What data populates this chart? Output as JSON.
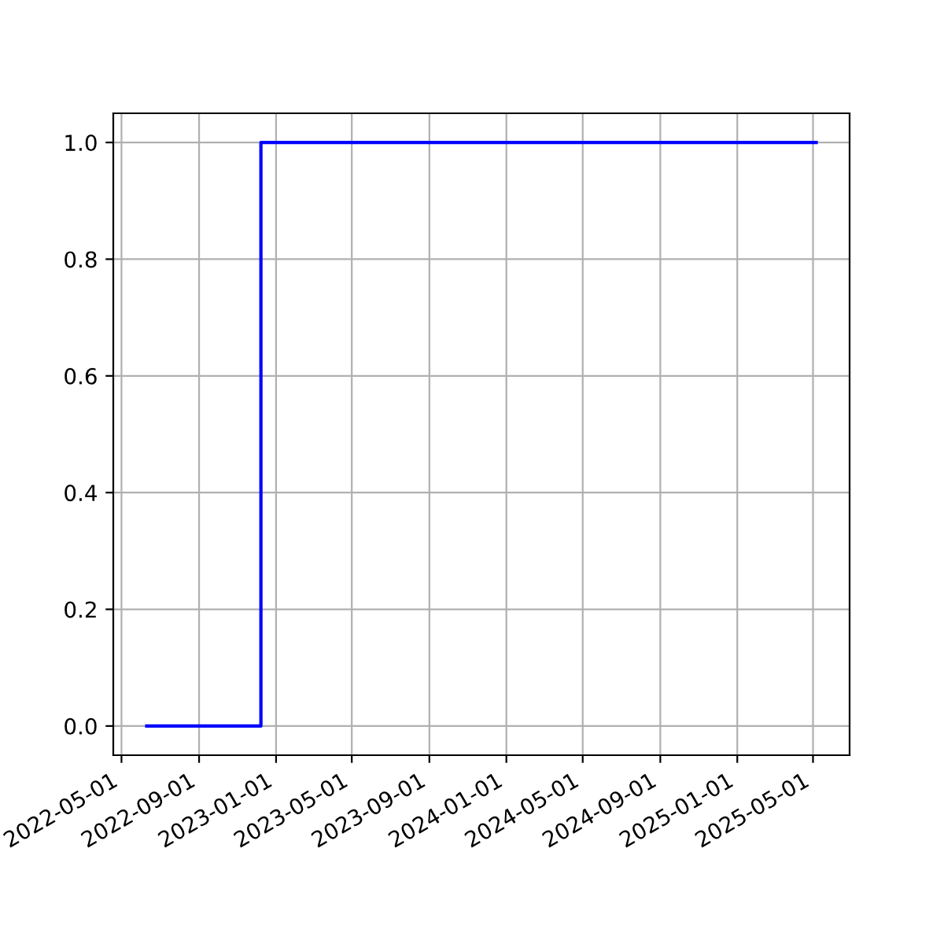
{
  "chart_data": {
    "type": "step",
    "x": [
      "2022-06-10",
      "2022-12-08",
      "2025-05-06"
    ],
    "series": [
      {
        "color": "#0000ff",
        "values": [
          0,
          1,
          1
        ]
      }
    ],
    "xlim": [
      "2022-04-18",
      "2025-06-28"
    ],
    "xticks": [
      "2022-05-01",
      "2022-09-01",
      "2023-01-01",
      "2023-05-01",
      "2023-09-01",
      "2024-01-01",
      "2024-05-01",
      "2024-09-01",
      "2025-01-01",
      "2025-05-01"
    ],
    "ylim": [
      -0.05,
      1.05
    ],
    "yticks": [
      {
        "value": 0,
        "label": "0.0"
      },
      {
        "value": 0.2,
        "label": "0.2"
      },
      {
        "value": 0.4,
        "label": "0.4"
      },
      {
        "value": 0.6,
        "label": "0.6"
      },
      {
        "value": 0.8,
        "label": "0.8"
      },
      {
        "value": 1,
        "label": "1.0"
      }
    ],
    "grid": true
  }
}
